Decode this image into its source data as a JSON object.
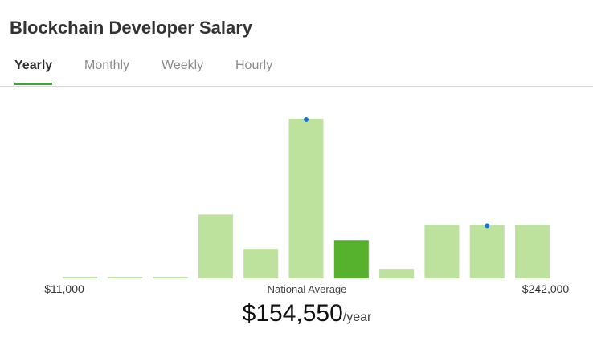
{
  "header": {
    "title": "Blockchain Developer Salary"
  },
  "tabs": [
    {
      "label": "Yearly",
      "active": true
    },
    {
      "label": "Monthly",
      "active": false
    },
    {
      "label": "Weekly",
      "active": false
    },
    {
      "label": "Hourly",
      "active": false
    }
  ],
  "chart_data": {
    "type": "bar",
    "values": [
      1,
      1,
      1,
      40,
      18.5,
      100,
      24,
      6,
      33.5,
      33.5,
      33.5
    ],
    "color": "#bce29e",
    "highlight_index": 6,
    "highlight_color": "#56b12c",
    "dot_indices": [
      5,
      9
    ],
    "dot_color": "#1a73d9",
    "min_label": "$11,000",
    "max_label": "$242,000",
    "average_label": "National Average",
    "average_value": "$154,550",
    "average_unit": "/year"
  }
}
